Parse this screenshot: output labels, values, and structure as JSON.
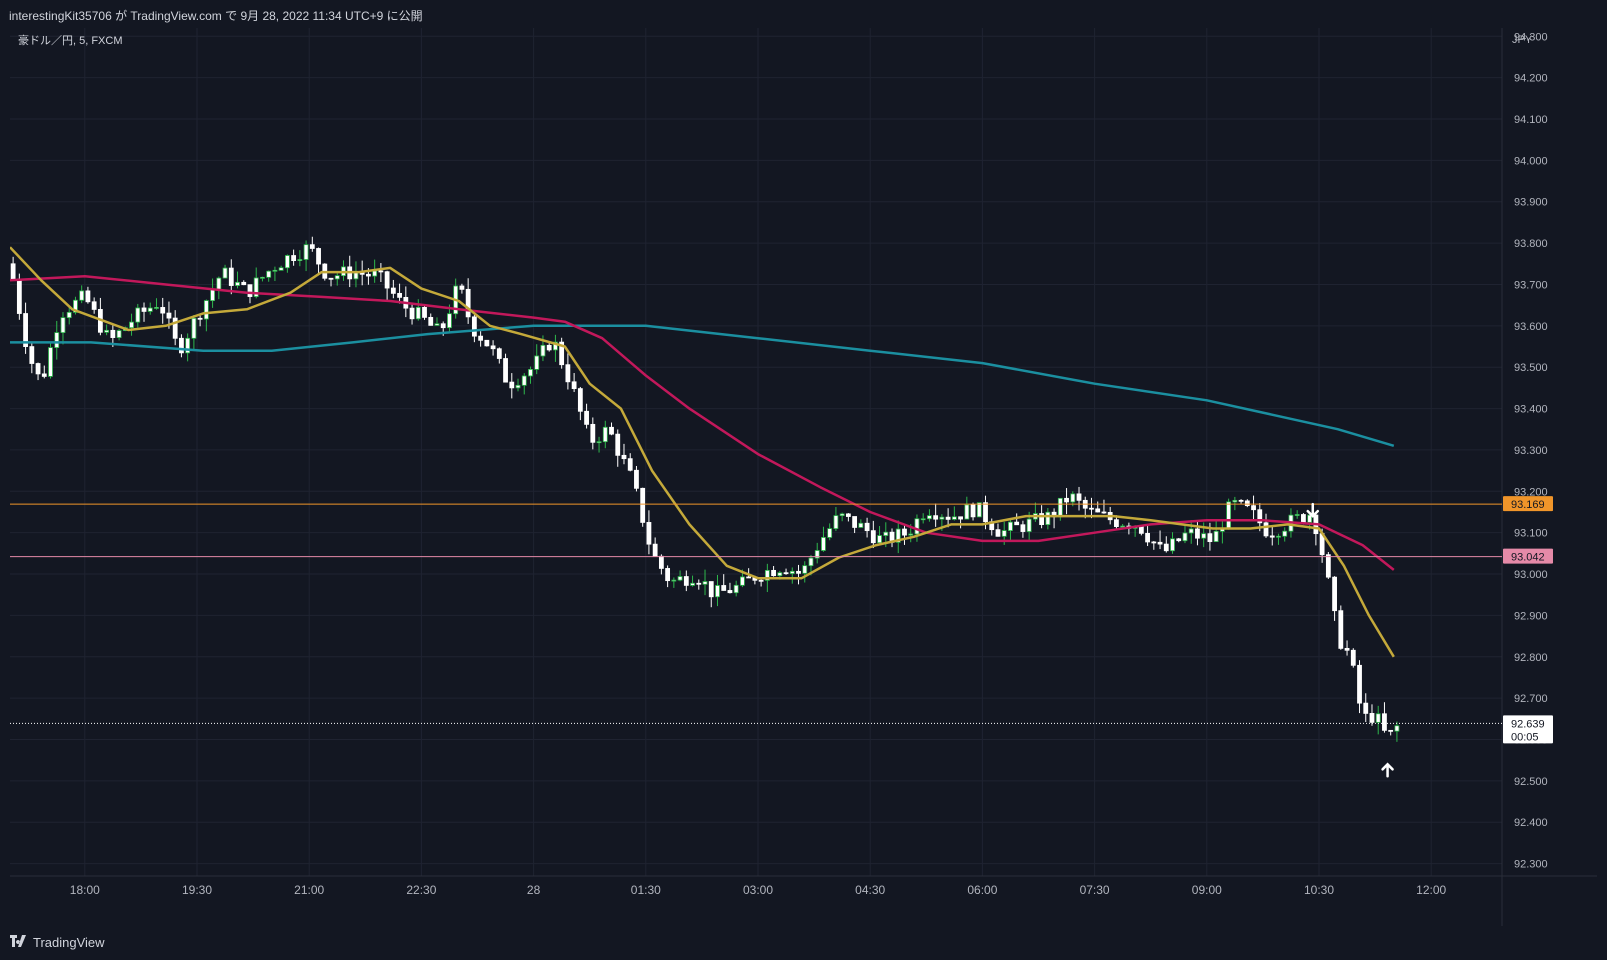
{
  "header": {
    "publish_info": "interestingKit35706 が TradingView.com で 9月 28, 2022 11:34 UTC+9 に公開"
  },
  "chart_header": {
    "symbol_label": "豪ドル／円, 5, FXCM"
  },
  "footer": {
    "brand": "TradingView",
    "logo_icon": "tradingview-logo-icon"
  },
  "chart_data": {
    "type": "candlestick",
    "currency_label": "JPY",
    "y_ticks": [
      "94.300",
      "94.200",
      "94.100",
      "94.000",
      "93.900",
      "93.800",
      "93.700",
      "93.600",
      "93.500",
      "93.400",
      "93.300",
      "93.200",
      "93.100",
      "93.000",
      "92.900",
      "92.800",
      "92.700",
      "92.600",
      "92.500",
      "92.400",
      "92.300"
    ],
    "ylim": [
      92.27,
      94.32
    ],
    "x_ticks": [
      "18:00",
      "19:30",
      "21:00",
      "22:30",
      "28",
      "01:30",
      "03:00",
      "04:30",
      "06:00",
      "07:30",
      "09:00",
      "10:30",
      "12:00"
    ],
    "x_tick_times": [
      "17:55",
      "19:25",
      "20:55",
      "22:25",
      "23:55",
      "01:25",
      "02:55",
      "04:25",
      "05:55",
      "07:25",
      "08:55",
      "10:25",
      "11:55"
    ],
    "time_start": "16:55",
    "time_end": "11:30",
    "colors": {
      "background": "#131722",
      "grid": "#1f2331",
      "up": "#ffffff",
      "down": "#ffffff",
      "up_border": "#2eb84c",
      "down_border": "#ffffff",
      "ma_fast": "#c4a93a",
      "ma_mid": "#c2185b",
      "ma_slow": "#1b8fa0"
    },
    "price_points": [
      {
        "t": "16:55",
        "p": 93.75
      },
      {
        "t": "17:10",
        "p": 93.53
      },
      {
        "t": "17:20",
        "p": 93.46
      },
      {
        "t": "17:35",
        "p": 93.63
      },
      {
        "t": "17:55",
        "p": 93.67
      },
      {
        "t": "18:15",
        "p": 93.56
      },
      {
        "t": "18:35",
        "p": 93.62
      },
      {
        "t": "18:55",
        "p": 93.66
      },
      {
        "t": "19:10",
        "p": 93.54
      },
      {
        "t": "19:30",
        "p": 93.65
      },
      {
        "t": "19:45",
        "p": 93.73
      },
      {
        "t": "20:05",
        "p": 93.68
      },
      {
        "t": "20:25",
        "p": 93.74
      },
      {
        "t": "20:40",
        "p": 93.77
      },
      {
        "t": "20:55",
        "p": 93.79
      },
      {
        "t": "21:10",
        "p": 93.72
      },
      {
        "t": "21:30",
        "p": 93.73
      },
      {
        "t": "21:50",
        "p": 93.72
      },
      {
        "t": "22:10",
        "p": 93.65
      },
      {
        "t": "22:25",
        "p": 93.62
      },
      {
        "t": "22:40",
        "p": 93.58
      },
      {
        "t": "22:55",
        "p": 93.7
      },
      {
        "t": "23:05",
        "p": 93.6
      },
      {
        "t": "23:20",
        "p": 93.55
      },
      {
        "t": "23:35",
        "p": 93.46
      },
      {
        "t": "23:55",
        "p": 93.5
      },
      {
        "t": "00:10",
        "p": 93.57
      },
      {
        "t": "00:25",
        "p": 93.46
      },
      {
        "t": "00:40",
        "p": 93.32
      },
      {
        "t": "00:55",
        "p": 93.35
      },
      {
        "t": "01:15",
        "p": 93.22
      },
      {
        "t": "01:30",
        "p": 93.05
      },
      {
        "t": "01:45",
        "p": 92.98
      },
      {
        "t": "02:05",
        "p": 93.0
      },
      {
        "t": "02:20",
        "p": 92.95
      },
      {
        "t": "02:40",
        "p": 92.97
      },
      {
        "t": "02:55",
        "p": 93.0
      },
      {
        "t": "03:15",
        "p": 93.02
      },
      {
        "t": "03:30",
        "p": 93.0
      },
      {
        "t": "03:45",
        "p": 93.08
      },
      {
        "t": "04:00",
        "p": 93.14
      },
      {
        "t": "04:20",
        "p": 93.11
      },
      {
        "t": "04:35",
        "p": 93.08
      },
      {
        "t": "04:55",
        "p": 93.1
      },
      {
        "t": "05:10",
        "p": 93.16
      },
      {
        "t": "05:30",
        "p": 93.14
      },
      {
        "t": "05:50",
        "p": 93.16
      },
      {
        "t": "06:10",
        "p": 93.1
      },
      {
        "t": "06:30",
        "p": 93.12
      },
      {
        "t": "06:50",
        "p": 93.14
      },
      {
        "t": "07:05",
        "p": 93.19
      },
      {
        "t": "07:20",
        "p": 93.15
      },
      {
        "t": "07:40",
        "p": 93.13
      },
      {
        "t": "08:00",
        "p": 93.12
      },
      {
        "t": "08:20",
        "p": 93.05
      },
      {
        "t": "08:40",
        "p": 93.1
      },
      {
        "t": "09:00",
        "p": 93.08
      },
      {
        "t": "09:15",
        "p": 93.17
      },
      {
        "t": "09:30",
        "p": 93.15
      },
      {
        "t": "09:45",
        "p": 93.1
      },
      {
        "t": "10:05",
        "p": 93.13
      },
      {
        "t": "10:20",
        "p": 93.15
      },
      {
        "t": "10:30",
        "p": 93.02
      },
      {
        "t": "10:40",
        "p": 92.85
      },
      {
        "t": "10:50",
        "p": 92.8
      },
      {
        "t": "11:00",
        "p": 92.65
      },
      {
        "t": "11:10",
        "p": 92.66
      },
      {
        "t": "11:20",
        "p": 92.6
      },
      {
        "t": "11:30",
        "p": 92.64
      }
    ],
    "ma_fast_points": [
      {
        "t": "16:55",
        "p": 93.79
      },
      {
        "t": "17:20",
        "p": 93.71
      },
      {
        "t": "17:45",
        "p": 93.64
      },
      {
        "t": "18:30",
        "p": 93.59
      },
      {
        "t": "19:00",
        "p": 93.6
      },
      {
        "t": "19:30",
        "p": 93.63
      },
      {
        "t": "20:05",
        "p": 93.64
      },
      {
        "t": "20:40",
        "p": 93.68
      },
      {
        "t": "21:05",
        "p": 93.73
      },
      {
        "t": "21:35",
        "p": 93.73
      },
      {
        "t": "22:00",
        "p": 93.74
      },
      {
        "t": "22:25",
        "p": 93.69
      },
      {
        "t": "22:55",
        "p": 93.66
      },
      {
        "t": "23:20",
        "p": 93.6
      },
      {
        "t": "23:45",
        "p": 93.58
      },
      {
        "t": "00:20",
        "p": 93.55
      },
      {
        "t": "00:40",
        "p": 93.46
      },
      {
        "t": "01:05",
        "p": 93.4
      },
      {
        "t": "01:30",
        "p": 93.25
      },
      {
        "t": "02:00",
        "p": 93.12
      },
      {
        "t": "02:30",
        "p": 93.02
      },
      {
        "t": "02:55",
        "p": 92.99
      },
      {
        "t": "03:30",
        "p": 92.99
      },
      {
        "t": "04:00",
        "p": 93.04
      },
      {
        "t": "04:30",
        "p": 93.07
      },
      {
        "t": "05:00",
        "p": 93.09
      },
      {
        "t": "05:30",
        "p": 93.12
      },
      {
        "t": "05:55",
        "p": 93.12
      },
      {
        "t": "06:30",
        "p": 93.14
      },
      {
        "t": "07:00",
        "p": 93.14
      },
      {
        "t": "07:40",
        "p": 93.14
      },
      {
        "t": "08:10",
        "p": 93.13
      },
      {
        "t": "08:35",
        "p": 93.12
      },
      {
        "t": "09:00",
        "p": 93.11
      },
      {
        "t": "09:30",
        "p": 93.11
      },
      {
        "t": "10:00",
        "p": 93.12
      },
      {
        "t": "10:25",
        "p": 93.11
      },
      {
        "t": "10:45",
        "p": 93.02
      },
      {
        "t": "11:05",
        "p": 92.9
      },
      {
        "t": "11:25",
        "p": 92.8
      }
    ],
    "ma_mid_points": [
      {
        "t": "16:55",
        "p": 93.71
      },
      {
        "t": "17:55",
        "p": 93.72
      },
      {
        "t": "19:00",
        "p": 93.7
      },
      {
        "t": "20:05",
        "p": 93.68
      },
      {
        "t": "21:05",
        "p": 93.67
      },
      {
        "t": "22:00",
        "p": 93.66
      },
      {
        "t": "22:55",
        "p": 93.64
      },
      {
        "t": "23:55",
        "p": 93.62
      },
      {
        "t": "00:20",
        "p": 93.61
      },
      {
        "t": "00:50",
        "p": 93.57
      },
      {
        "t": "01:25",
        "p": 93.48
      },
      {
        "t": "02:00",
        "p": 93.4
      },
      {
        "t": "02:55",
        "p": 93.29
      },
      {
        "t": "03:45",
        "p": 93.21
      },
      {
        "t": "04:25",
        "p": 93.15
      },
      {
        "t": "05:10",
        "p": 93.1
      },
      {
        "t": "05:55",
        "p": 93.08
      },
      {
        "t": "06:40",
        "p": 93.08
      },
      {
        "t": "07:25",
        "p": 93.1
      },
      {
        "t": "08:10",
        "p": 93.12
      },
      {
        "t": "08:55",
        "p": 93.13
      },
      {
        "t": "09:40",
        "p": 93.13
      },
      {
        "t": "10:25",
        "p": 93.12
      },
      {
        "t": "11:00",
        "p": 93.07
      },
      {
        "t": "11:25",
        "p": 93.01
      }
    ],
    "ma_slow_points": [
      {
        "t": "16:55",
        "p": 93.56
      },
      {
        "t": "18:00",
        "p": 93.56
      },
      {
        "t": "19:30",
        "p": 93.54
      },
      {
        "t": "20:25",
        "p": 93.54
      },
      {
        "t": "21:30",
        "p": 93.56
      },
      {
        "t": "22:30",
        "p": 93.58
      },
      {
        "t": "23:55",
        "p": 93.6
      },
      {
        "t": "01:25",
        "p": 93.6
      },
      {
        "t": "02:55",
        "p": 93.57
      },
      {
        "t": "04:25",
        "p": 93.54
      },
      {
        "t": "05:55",
        "p": 93.51
      },
      {
        "t": "07:25",
        "p": 93.46
      },
      {
        "t": "08:55",
        "p": 93.42
      },
      {
        "t": "09:55",
        "p": 93.38
      },
      {
        "t": "10:40",
        "p": 93.35
      },
      {
        "t": "11:25",
        "p": 93.31
      }
    ],
    "horizontal_lines": [
      {
        "price": 93.169,
        "label": "93.169",
        "color": "#f0952a",
        "style": "solid"
      },
      {
        "price": 93.042,
        "label": "93.042",
        "color": "#e58aa8",
        "style": "solid"
      },
      {
        "price": 92.639,
        "label": "92.639",
        "sublabel": "00:05",
        "color": "#ffffff",
        "style": "dotted"
      }
    ],
    "markers": [
      {
        "t": "10:20",
        "price": 93.14,
        "direction": "down",
        "icon": "arrow-down-icon"
      },
      {
        "t": "11:20",
        "price": 92.54,
        "direction": "up",
        "icon": "arrow-up-icon"
      }
    ],
    "title": "",
    "xlabel": "",
    "ylabel": "",
    "grid": true,
    "legend": "none"
  }
}
